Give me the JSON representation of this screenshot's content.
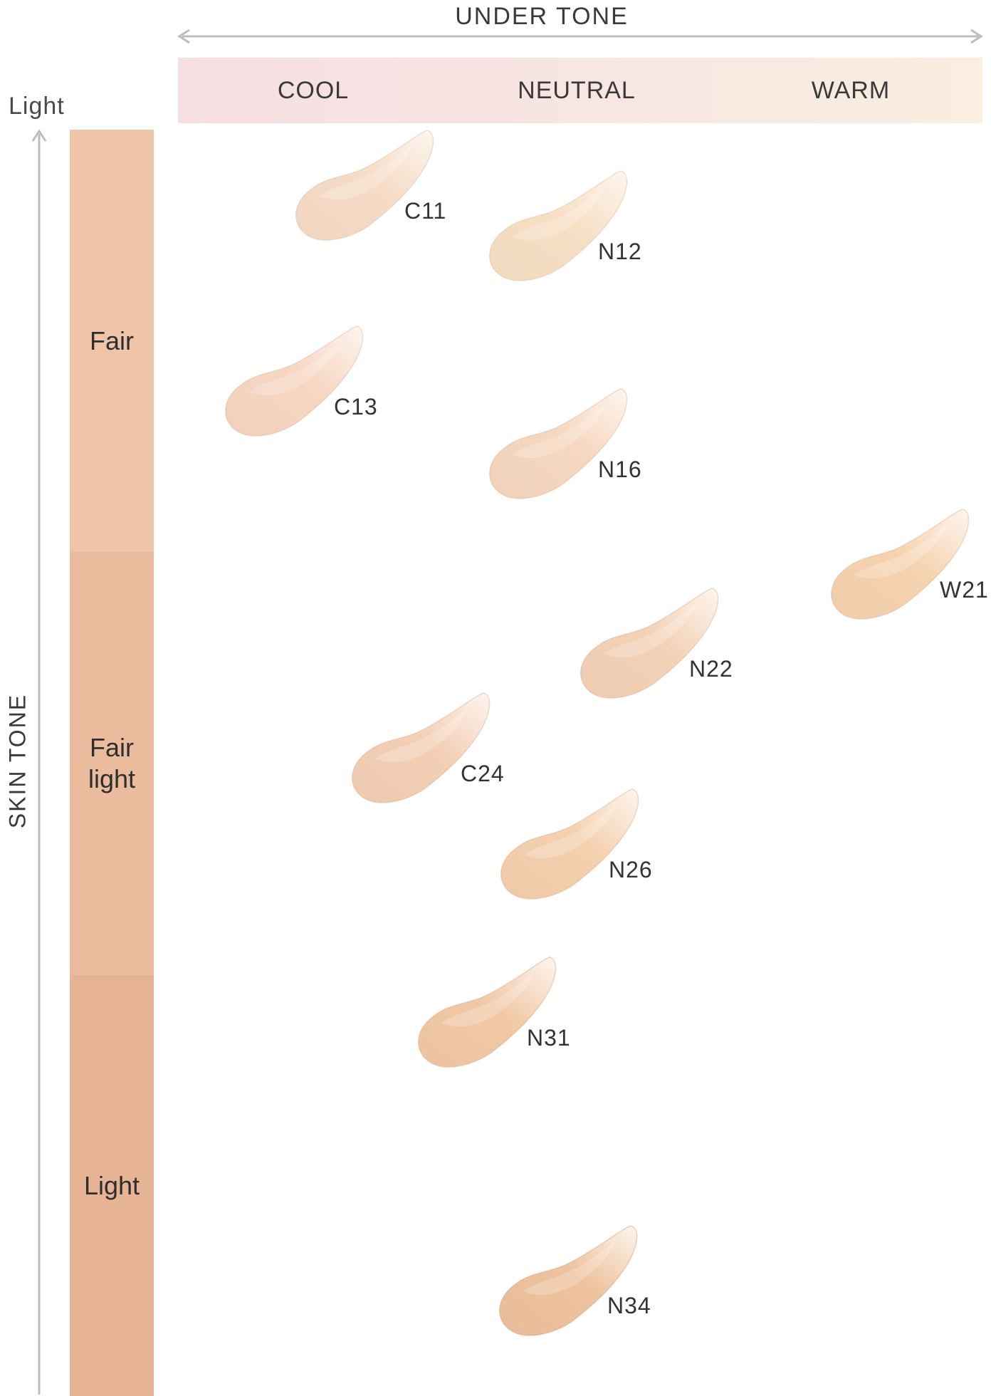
{
  "header": {
    "title": "UNDER TONE"
  },
  "undertones": [
    {
      "label": "COOL"
    },
    {
      "label": "NEUTRAL"
    },
    {
      "label": "WARM"
    }
  ],
  "axis": {
    "direction_label": "Light",
    "title": "SKIN TONE"
  },
  "skin_bands": [
    {
      "label": "Fair",
      "color": "#efc5a9"
    },
    {
      "label": "Fair\nlight",
      "color": "#ebbb9e"
    },
    {
      "label": "Light",
      "color": "#e6b394"
    }
  ],
  "colors": {
    "arrow": "#bdbdbd",
    "tone_bar_cool": "#f6dfe2",
    "tone_bar_warm": "#f9eedf"
  },
  "shades": [
    {
      "code": "C11",
      "undertone": "cool",
      "color": "#f6dcc7"
    },
    {
      "code": "N12",
      "undertone": "neutral",
      "color": "#f7dfc4"
    },
    {
      "code": "C13",
      "undertone": "cool",
      "color": "#f7d6c2"
    },
    {
      "code": "N16",
      "undertone": "neutral",
      "color": "#f6d7bf"
    },
    {
      "code": "W21",
      "undertone": "warm",
      "color": "#f6d3b0"
    },
    {
      "code": "N22",
      "undertone": "neutral",
      "color": "#f3d2b7"
    },
    {
      "code": "C24",
      "undertone": "cool",
      "color": "#f3cfb5"
    },
    {
      "code": "N26",
      "undertone": "neutral",
      "color": "#f4d0ae"
    },
    {
      "code": "N31",
      "undertone": "neutral",
      "color": "#f1c9a6"
    },
    {
      "code": "N34",
      "undertone": "neutral",
      "color": "#eec29e"
    }
  ]
}
